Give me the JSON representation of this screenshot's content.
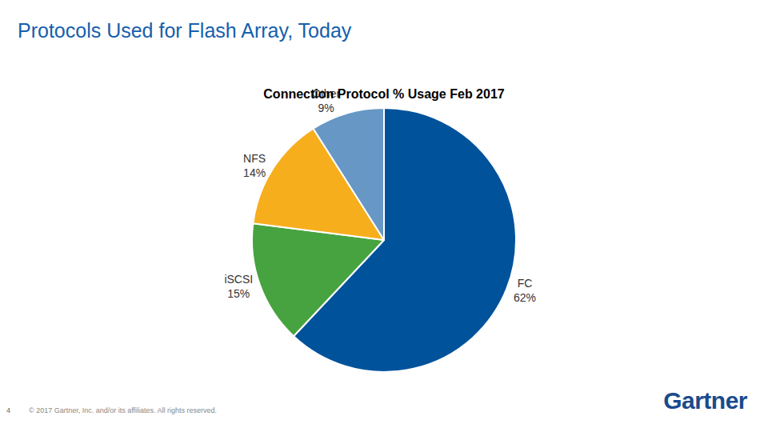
{
  "page": {
    "title": "Protocols Used for Flash Array, Today",
    "page_number": 4,
    "footer": "© 2017 Gartner, Inc. and/or its affiliates. All rights reserved.",
    "logo": "Gartner"
  },
  "chart_data": {
    "type": "pie",
    "title": "Connection Protocol % Usage Feb 2017",
    "categories": [
      "FC",
      "iSCSI",
      "NFS",
      "Other"
    ],
    "values": [
      62,
      15,
      14,
      9
    ],
    "value_labels": [
      "62%",
      "15%",
      "14%",
      "9%"
    ],
    "colors": [
      "#00529b",
      "#47a33f",
      "#f7ae1d",
      "#6797c5"
    ],
    "data_labels": true
  }
}
